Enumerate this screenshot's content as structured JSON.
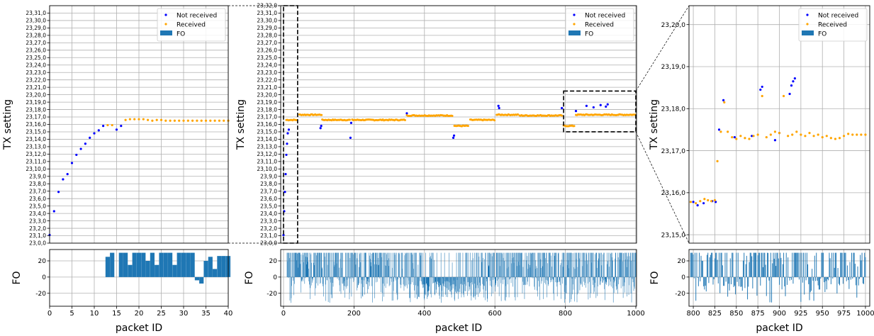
{
  "figure": {
    "colors": {
      "not_received": "#0000ff",
      "received": "#ffa500",
      "fo_bars": "#1f77b4",
      "grid": "#b0b0b0",
      "zoom_box": "#000000"
    }
  },
  "chart_data": [
    {
      "type": "scatter",
      "panel": "left-top",
      "xlabel": "",
      "ylabel": "TX setting",
      "xlim": [
        0,
        40
      ],
      "ylim": [
        23.0,
        23.32
      ],
      "y_ticks": [
        23.0,
        23.01,
        23.02,
        23.03,
        23.04,
        23.05,
        23.06,
        23.07,
        23.08,
        23.09,
        23.1,
        23.11,
        23.12,
        23.13,
        23.14,
        23.15,
        23.16,
        23.17,
        23.18,
        23.19,
        23.2,
        23.21,
        23.22,
        23.23,
        23.24,
        23.25,
        23.26,
        23.27,
        23.28,
        23.29,
        23.3,
        23.31
      ],
      "y_tick_labels": [
        "23,0,0",
        "23,1,0",
        "23,2,0",
        "23,3,0",
        "23,4,0",
        "23,5,0",
        "23,6,0",
        "23,7,0",
        "23,8,0",
        "23,9,0",
        "23,10,0",
        "23,11,0",
        "23,12,0",
        "23,13,0",
        "23,14,0",
        "23,15,0",
        "23,16,0",
        "23,17,0",
        "23,18,0",
        "23,19,0",
        "23,20,0",
        "23,21,0",
        "23,22,0",
        "23,23,0",
        "23,24,0",
        "23,25,0",
        "23,26,0",
        "23,27,0",
        "23,28,0",
        "23,29,0",
        "23,30,0",
        "23,31,0"
      ],
      "grid": true,
      "legend_position": "top-right",
      "legend": [
        "Not received",
        "Received",
        "FO"
      ],
      "series": [
        {
          "name": "Not received",
          "x": [
            0,
            1,
            2,
            3,
            4,
            5,
            6,
            7,
            8,
            9,
            10,
            11,
            12,
            15,
            16
          ],
          "y": [
            23.011,
            23.043,
            23.069,
            23.086,
            23.093,
            23.108,
            23.119,
            23.127,
            23.134,
            23.142,
            23.148,
            23.152,
            23.158,
            23.153,
            23.158
          ]
        },
        {
          "name": "Received",
          "x": [
            13,
            14,
            17,
            18,
            19,
            20,
            21,
            22,
            23,
            24,
            25,
            26,
            27,
            28,
            29,
            30,
            31,
            32,
            33,
            34,
            35,
            36,
            37,
            38,
            39,
            40
          ],
          "y": [
            23.159,
            23.159,
            23.166,
            23.167,
            23.167,
            23.167,
            23.167,
            23.166,
            23.165,
            23.166,
            23.166,
            23.165,
            23.165,
            23.165,
            23.165,
            23.165,
            23.165,
            23.165,
            23.165,
            23.165,
            23.165,
            23.165,
            23.165,
            23.165,
            23.165,
            23.165
          ]
        }
      ]
    },
    {
      "type": "bar",
      "panel": "left-bottom",
      "xlabel": "packet ID",
      "ylabel": "FO",
      "xlim": [
        0,
        40
      ],
      "ylim": [
        -36,
        34
      ],
      "x_ticks": [
        0,
        5,
        10,
        15,
        20,
        25,
        30,
        35,
        40
      ],
      "y_ticks": [
        -20,
        0,
        20
      ],
      "grid": true,
      "x": [
        13,
        14,
        16,
        17,
        18,
        19,
        20,
        21,
        22,
        23,
        24,
        25,
        26,
        27,
        28,
        29,
        30,
        31,
        32,
        33,
        34,
        35,
        36,
        37,
        38,
        39,
        40
      ],
      "values": [
        25,
        30,
        30,
        30,
        15,
        30,
        30,
        30,
        20,
        30,
        15,
        30,
        30,
        30,
        15,
        30,
        30,
        30,
        30,
        -4,
        -8,
        20,
        25,
        10,
        26,
        26,
        26
      ]
    },
    {
      "type": "scatter",
      "panel": "middle-top",
      "xlabel": "",
      "ylabel": "TX setting",
      "xlim": [
        -8,
        1002
      ],
      "ylim": [
        23.0,
        23.32
      ],
      "y_ticks": [
        23.0,
        23.01,
        23.02,
        23.03,
        23.04,
        23.05,
        23.06,
        23.07,
        23.08,
        23.09,
        23.1,
        23.11,
        23.12,
        23.13,
        23.14,
        23.15,
        23.16,
        23.17,
        23.18,
        23.19,
        23.2,
        23.21,
        23.22,
        23.23,
        23.24,
        23.25,
        23.26,
        23.27,
        23.28,
        23.29,
        23.3,
        23.31,
        23.32
      ],
      "y_tick_labels": [
        "23,0,0",
        "23,1,0",
        "23,2,0",
        "23,3,0",
        "23,4,0",
        "23,5,0",
        "23,6,0",
        "23,7,0",
        "23,8,0",
        "23,9,0",
        "23,10,0",
        "23,11,0",
        "23,12,0",
        "23,13,0",
        "23,14,0",
        "23,15,0",
        "23,16,0",
        "23,17,0",
        "23,18,0",
        "23,19,0",
        "23,20,0",
        "23,21,0",
        "23,22,0",
        "23,23,0",
        "23,24,0",
        "23,25,0",
        "23,26,0",
        "23,27,0",
        "23,28,0",
        "23,29,0",
        "23,30,0",
        "23,31,0",
        "23,32,0"
      ],
      "grid": true,
      "legend_position": "top-right",
      "legend": [
        "Not received",
        "Received",
        "FO"
      ],
      "received_segments": [
        {
          "from": 8,
          "to": 40,
          "y": 23.166
        },
        {
          "from": 45,
          "to": 110,
          "y": 23.173
        },
        {
          "from": 110,
          "to": 190,
          "y": 23.166
        },
        {
          "from": 195,
          "to": 345,
          "y": 23.166
        },
        {
          "from": 350,
          "to": 480,
          "y": 23.172
        },
        {
          "from": 485,
          "to": 525,
          "y": 23.158
        },
        {
          "from": 530,
          "to": 600,
          "y": 23.166
        },
        {
          "from": 605,
          "to": 665,
          "y": 23.173
        },
        {
          "from": 670,
          "to": 790,
          "y": 23.172
        },
        {
          "from": 795,
          "to": 825,
          "y": 23.158
        },
        {
          "from": 830,
          "to": 1000,
          "y": 23.173
        }
      ],
      "not_received_points": {
        "x": [
          0,
          2,
          4,
          6,
          8,
          10,
          12,
          15,
          105,
          107,
          190,
          192,
          350,
          482,
          484,
          610,
          612,
          790,
          830,
          860,
          880,
          900,
          915,
          920
        ],
        "y": [
          23.011,
          23.043,
          23.069,
          23.093,
          23.119,
          23.134,
          23.148,
          23.153,
          23.155,
          23.158,
          23.142,
          23.162,
          23.175,
          23.142,
          23.145,
          23.185,
          23.182,
          23.182,
          23.178,
          23.185,
          23.183,
          23.186,
          23.184,
          23.187
        ]
      },
      "zoom_boxes": [
        {
          "x": [
            0,
            40
          ],
          "y": [
            23.0,
            23.32
          ]
        },
        {
          "x": [
            795,
            1000
          ],
          "y": [
            23.15,
            23.205
          ]
        }
      ]
    },
    {
      "type": "bar",
      "panel": "middle-bottom",
      "xlabel": "packet ID",
      "ylabel": "FO",
      "xlim": [
        -8,
        1002
      ],
      "ylim": [
        -36,
        34
      ],
      "x_ticks": [
        0,
        200,
        400,
        600,
        800,
        1000
      ],
      "y_ticks": [
        -20,
        0,
        20
      ],
      "grid": true,
      "x_range": [
        10,
        1000
      ],
      "value_range": [
        -34,
        30
      ]
    },
    {
      "type": "scatter",
      "panel": "right-top",
      "xlabel": "",
      "ylabel": "TX setting",
      "xlim": [
        795,
        1005
      ],
      "ylim": [
        23.148,
        23.2045
      ],
      "y_ticks": [
        23.15,
        23.16,
        23.17,
        23.18,
        23.19,
        23.2
      ],
      "y_tick_labels": [
        "23,15,0",
        "23,16,0",
        "23,17,0",
        "23,18,0",
        "23,19,0",
        "23,20,0"
      ],
      "grid": true,
      "legend_position": "top-right",
      "legend": [
        "Not received",
        "Received",
        "FO"
      ],
      "series": [
        {
          "name": "Not received",
          "x": [
            800,
            805,
            812,
            822,
            826,
            830,
            835,
            848,
            868,
            878,
            880,
            895,
            900,
            912,
            914,
            916,
            918
          ],
          "y": [
            23.1578,
            23.157,
            23.1575,
            23.158,
            23.1578,
            23.175,
            23.182,
            23.1732,
            23.1735,
            23.1845,
            23.1852,
            23.1725,
            23.1742,
            23.1835,
            23.1855,
            23.1865,
            23.1872
          ]
        },
        {
          "name": "Received",
          "x": [
            797,
            803,
            808,
            813,
            817,
            821,
            825,
            828,
            832,
            836,
            840,
            845,
            850,
            855,
            860,
            865,
            870,
            875,
            880,
            885,
            890,
            895,
            900,
            905,
            910,
            915,
            920,
            925,
            930,
            935,
            940,
            945,
            950,
            955,
            960,
            965,
            970,
            975,
            980,
            985,
            990,
            995,
            1000
          ],
          "y": [
            23.1578,
            23.1575,
            23.158,
            23.1585,
            23.1582,
            23.158,
            23.1582,
            23.1675,
            23.1745,
            23.1815,
            23.1745,
            23.1732,
            23.1728,
            23.1735,
            23.173,
            23.1728,
            23.1735,
            23.1738,
            23.183,
            23.1732,
            23.1738,
            23.1745,
            23.1742,
            23.183,
            23.1735,
            23.1738,
            23.1745,
            23.1738,
            23.1735,
            23.1742,
            23.1735,
            23.1738,
            23.1732,
            23.1735,
            23.173,
            23.1728,
            23.173,
            23.1735,
            23.174,
            23.1738,
            23.1738,
            23.1738,
            23.1738
          ]
        }
      ]
    },
    {
      "type": "bar",
      "panel": "right-bottom",
      "xlabel": "packet ID",
      "ylabel": "FO",
      "xlim": [
        795,
        1005
      ],
      "ylim": [
        -36,
        34
      ],
      "x_ticks": [
        800,
        825,
        850,
        875,
        900,
        925,
        950,
        975,
        1000
      ],
      "y_ticks": [
        -20,
        0,
        20
      ],
      "grid": true,
      "x_range": [
        797,
        1000
      ],
      "value_range": [
        -32,
        30
      ]
    }
  ]
}
